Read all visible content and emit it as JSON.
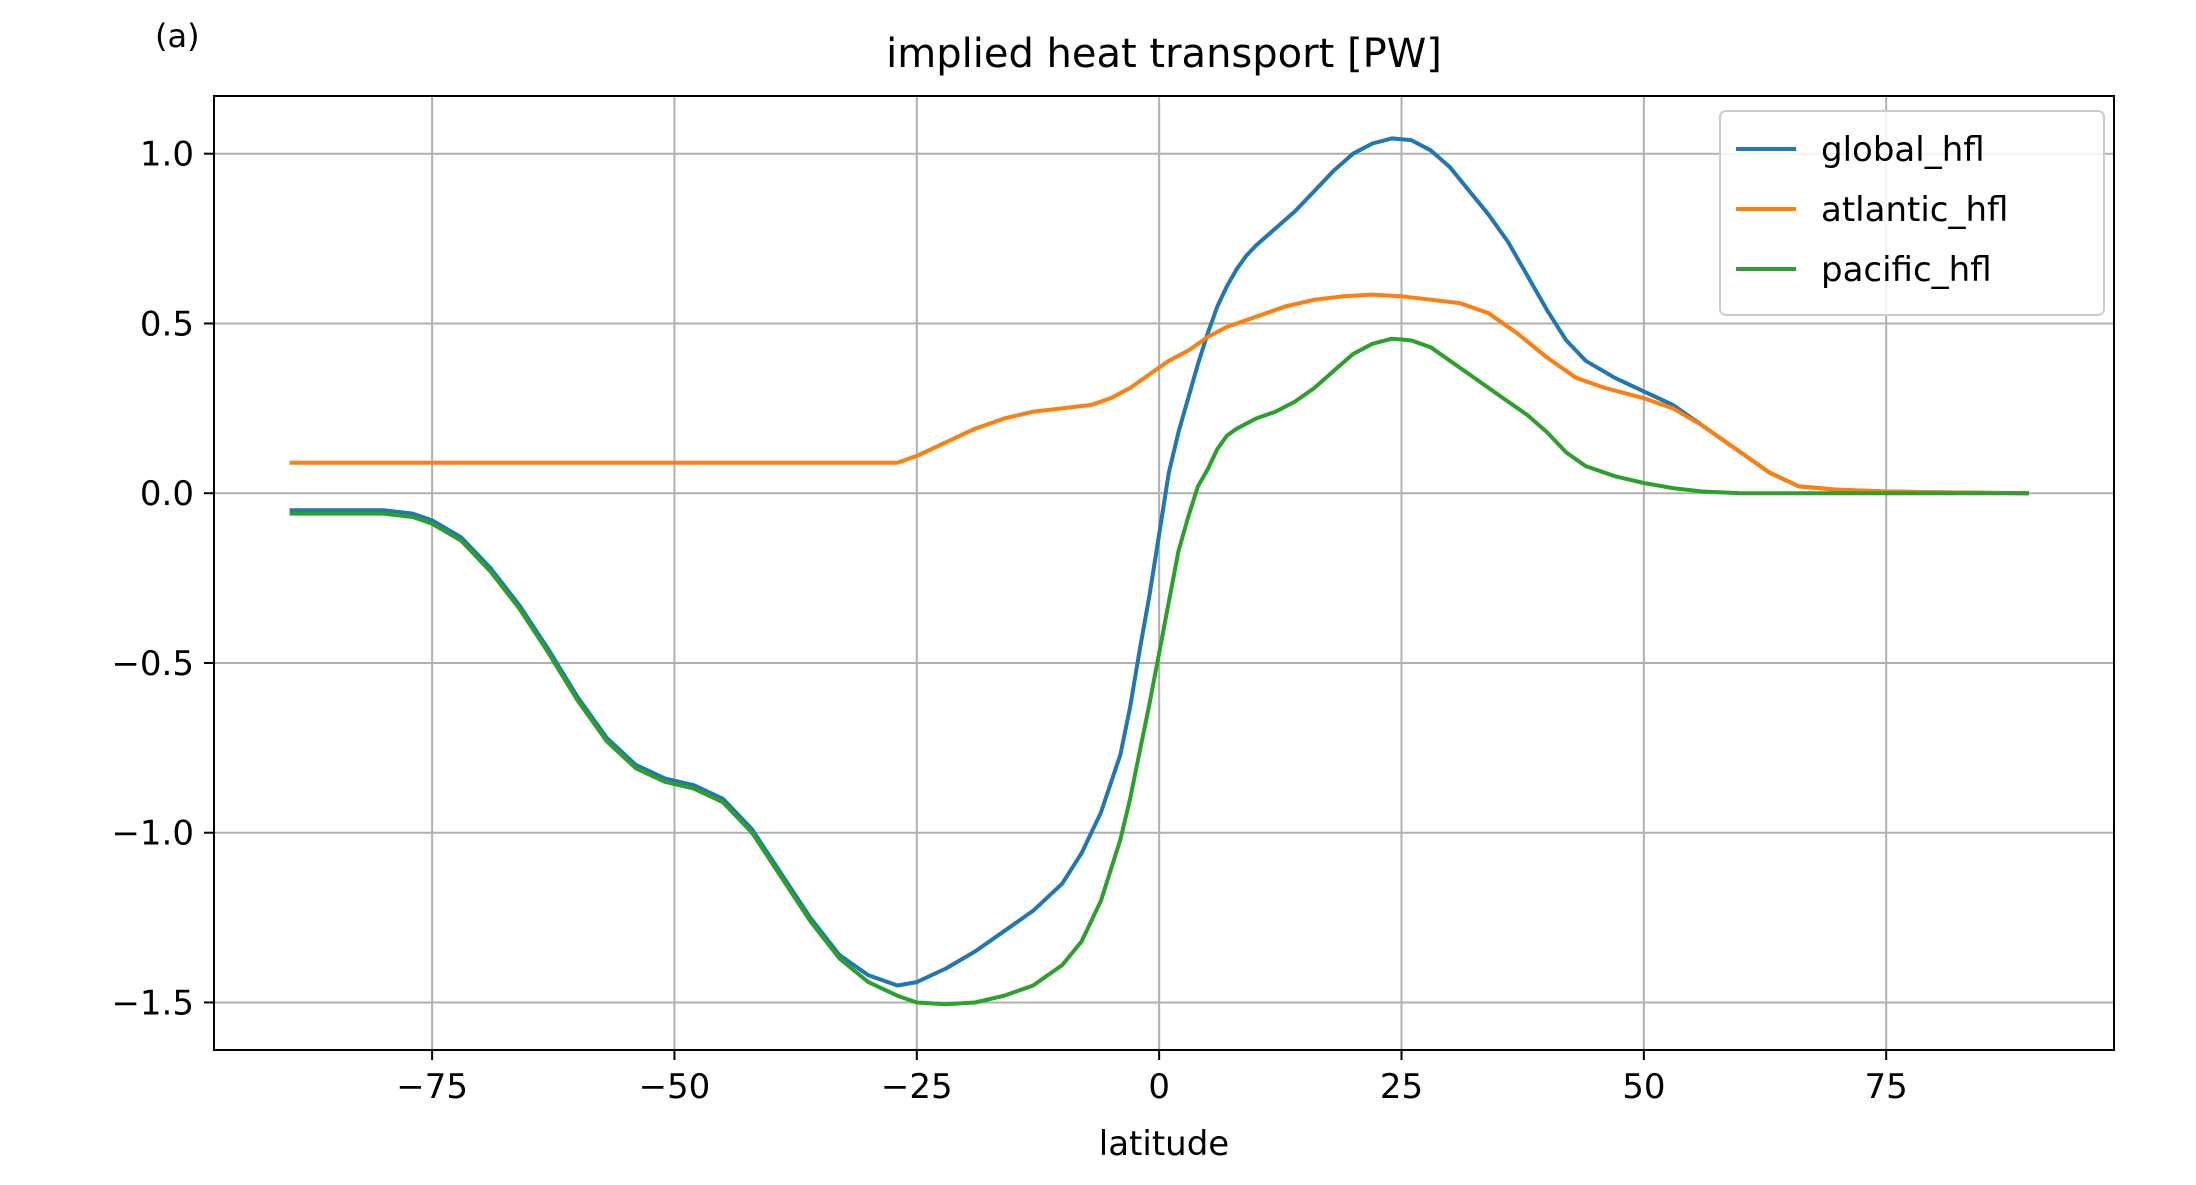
{
  "panel_label": "(a)",
  "chart_data": {
    "type": "line",
    "title": "implied heat transport [PW]",
    "xlabel": "latitude",
    "ylabel": "",
    "xlim": [
      -97.5,
      98.5
    ],
    "ylim": [
      -1.64,
      1.17
    ],
    "x_ticks": [
      -75,
      -50,
      -25,
      0,
      25,
      50,
      75
    ],
    "x_tick_labels": [
      "−75",
      "−50",
      "−25",
      "0",
      "25",
      "50",
      "75"
    ],
    "y_ticks": [
      1.0,
      0.5,
      0.0,
      -0.5,
      -1.0,
      -1.5
    ],
    "y_tick_labels": [
      "1.0",
      "0.5",
      "0.0",
      "−0.5",
      "−1.0",
      "−1.5"
    ],
    "grid": true,
    "legend_position": "upper right",
    "series": [
      {
        "name": "global_hfl",
        "color": "#1f77b4",
        "points": [
          [
            -89.5,
            -0.05
          ],
          [
            -85,
            -0.05
          ],
          [
            -80,
            -0.05
          ],
          [
            -77,
            -0.06
          ],
          [
            -75,
            -0.08
          ],
          [
            -72,
            -0.13
          ],
          [
            -69,
            -0.22
          ],
          [
            -66,
            -0.33
          ],
          [
            -63,
            -0.46
          ],
          [
            -60,
            -0.6
          ],
          [
            -57,
            -0.72
          ],
          [
            -54,
            -0.8
          ],
          [
            -51,
            -0.84
          ],
          [
            -48,
            -0.86
          ],
          [
            -45,
            -0.9
          ],
          [
            -42,
            -0.99
          ],
          [
            -39,
            -1.12
          ],
          [
            -36,
            -1.25
          ],
          [
            -33,
            -1.36
          ],
          [
            -30,
            -1.42
          ],
          [
            -27,
            -1.45
          ],
          [
            -25,
            -1.44
          ],
          [
            -22,
            -1.4
          ],
          [
            -19,
            -1.35
          ],
          [
            -16,
            -1.29
          ],
          [
            -13,
            -1.23
          ],
          [
            -10,
            -1.15
          ],
          [
            -8,
            -1.06
          ],
          [
            -6,
            -0.94
          ],
          [
            -4,
            -0.77
          ],
          [
            -3,
            -0.63
          ],
          [
            -2,
            -0.46
          ],
          [
            -1,
            -0.3
          ],
          [
            0,
            -0.12
          ],
          [
            1,
            0.06
          ],
          [
            2,
            0.18
          ],
          [
            3,
            0.28
          ],
          [
            4,
            0.38
          ],
          [
            5,
            0.47
          ],
          [
            6,
            0.55
          ],
          [
            7,
            0.61
          ],
          [
            8,
            0.66
          ],
          [
            9,
            0.7
          ],
          [
            10,
            0.73
          ],
          [
            12,
            0.78
          ],
          [
            14,
            0.83
          ],
          [
            16,
            0.89
          ],
          [
            18,
            0.95
          ],
          [
            20,
            1.0
          ],
          [
            22,
            1.03
          ],
          [
            24,
            1.045
          ],
          [
            26,
            1.04
          ],
          [
            28,
            1.01
          ],
          [
            30,
            0.96
          ],
          [
            32,
            0.89
          ],
          [
            34,
            0.82
          ],
          [
            36,
            0.74
          ],
          [
            38,
            0.64
          ],
          [
            40,
            0.54
          ],
          [
            42,
            0.45
          ],
          [
            44,
            0.39
          ],
          [
            47,
            0.34
          ],
          [
            50,
            0.3
          ],
          [
            53,
            0.26
          ],
          [
            56,
            0.2
          ],
          [
            60,
            0.12
          ],
          [
            63,
            0.06
          ],
          [
            66,
            0.02
          ],
          [
            70,
            0.01
          ],
          [
            75,
            0.005
          ],
          [
            80,
            0.003
          ],
          [
            89.5,
            0.0
          ]
        ]
      },
      {
        "name": "atlantic_hfl",
        "color": "#ff7f0e",
        "points": [
          [
            -89.5,
            0.09
          ],
          [
            -60,
            0.09
          ],
          [
            -40,
            0.09
          ],
          [
            -27,
            0.09
          ],
          [
            -25,
            0.11
          ],
          [
            -22,
            0.15
          ],
          [
            -19,
            0.19
          ],
          [
            -16,
            0.22
          ],
          [
            -13,
            0.24
          ],
          [
            -10,
            0.25
          ],
          [
            -7,
            0.26
          ],
          [
            -5,
            0.28
          ],
          [
            -3,
            0.31
          ],
          [
            -1,
            0.35
          ],
          [
            1,
            0.39
          ],
          [
            3,
            0.42
          ],
          [
            5,
            0.46
          ],
          [
            7,
            0.49
          ],
          [
            10,
            0.52
          ],
          [
            13,
            0.55
          ],
          [
            16,
            0.57
          ],
          [
            19,
            0.58
          ],
          [
            22,
            0.585
          ],
          [
            25,
            0.58
          ],
          [
            28,
            0.57
          ],
          [
            31,
            0.56
          ],
          [
            34,
            0.53
          ],
          [
            37,
            0.47
          ],
          [
            40,
            0.4
          ],
          [
            43,
            0.34
          ],
          [
            46,
            0.31
          ],
          [
            50,
            0.28
          ],
          [
            53,
            0.25
          ],
          [
            56,
            0.2
          ],
          [
            60,
            0.12
          ],
          [
            63,
            0.06
          ],
          [
            66,
            0.02
          ],
          [
            70,
            0.01
          ],
          [
            75,
            0.005
          ],
          [
            80,
            0.003
          ],
          [
            89.5,
            0.0
          ]
        ]
      },
      {
        "name": "pacific_hfl",
        "color": "#2ca02c",
        "points": [
          [
            -89.5,
            -0.06
          ],
          [
            -85,
            -0.06
          ],
          [
            -80,
            -0.06
          ],
          [
            -77,
            -0.07
          ],
          [
            -75,
            -0.09
          ],
          [
            -72,
            -0.14
          ],
          [
            -69,
            -0.23
          ],
          [
            -66,
            -0.34
          ],
          [
            -63,
            -0.47
          ],
          [
            -60,
            -0.61
          ],
          [
            -57,
            -0.73
          ],
          [
            -54,
            -0.81
          ],
          [
            -51,
            -0.85
          ],
          [
            -48,
            -0.87
          ],
          [
            -45,
            -0.91
          ],
          [
            -42,
            -1.0
          ],
          [
            -39,
            -1.13
          ],
          [
            -36,
            -1.26
          ],
          [
            -33,
            -1.37
          ],
          [
            -30,
            -1.44
          ],
          [
            -27,
            -1.48
          ],
          [
            -25,
            -1.5
          ],
          [
            -22,
            -1.505
          ],
          [
            -19,
            -1.5
          ],
          [
            -16,
            -1.48
          ],
          [
            -13,
            -1.45
          ],
          [
            -10,
            -1.39
          ],
          [
            -8,
            -1.32
          ],
          [
            -6,
            -1.2
          ],
          [
            -4,
            -1.02
          ],
          [
            -3,
            -0.9
          ],
          [
            -2,
            -0.76
          ],
          [
            -1,
            -0.62
          ],
          [
            0,
            -0.47
          ],
          [
            1,
            -0.32
          ],
          [
            2,
            -0.17
          ],
          [
            3,
            -0.07
          ],
          [
            4,
            0.02
          ],
          [
            5,
            0.07
          ],
          [
            6,
            0.13
          ],
          [
            7,
            0.17
          ],
          [
            8,
            0.19
          ],
          [
            10,
            0.22
          ],
          [
            12,
            0.24
          ],
          [
            14,
            0.27
          ],
          [
            16,
            0.31
          ],
          [
            18,
            0.36
          ],
          [
            20,
            0.41
          ],
          [
            22,
            0.44
          ],
          [
            24,
            0.455
          ],
          [
            26,
            0.45
          ],
          [
            28,
            0.43
          ],
          [
            30,
            0.39
          ],
          [
            32,
            0.35
          ],
          [
            34,
            0.31
          ],
          [
            36,
            0.27
          ],
          [
            38,
            0.23
          ],
          [
            40,
            0.18
          ],
          [
            42,
            0.12
          ],
          [
            44,
            0.08
          ],
          [
            47,
            0.05
          ],
          [
            50,
            0.03
          ],
          [
            53,
            0.015
          ],
          [
            56,
            0.005
          ],
          [
            60,
            0.0
          ],
          [
            70,
            0.0
          ],
          [
            80,
            0.0
          ],
          [
            89.5,
            0.0
          ]
        ]
      }
    ]
  }
}
